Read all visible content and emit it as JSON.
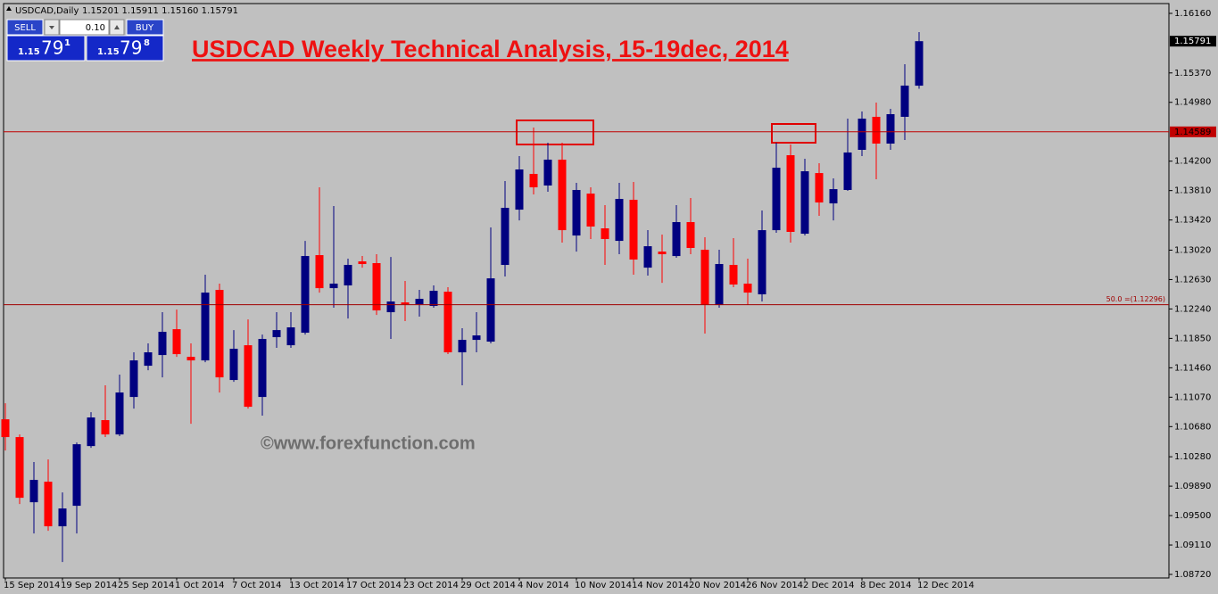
{
  "chart_data": {
    "type": "candlestick",
    "symbol_label": "USDCAD,Daily",
    "ohlc_text": "1.15201 1.15911 1.15160 1.15791",
    "title": "USDCAD Weekly Technical Analysis, 15-19dec, 2014",
    "watermark": "©www.forexfunction.com",
    "price_label": "1.15791",
    "up_color": "#000080",
    "down_color": "#ff0000",
    "grid": false,
    "categories": [
      "15 Sep 2014",
      null,
      null,
      null,
      "19 Sep 2014",
      null,
      null,
      null,
      "25 Sep 2014",
      null,
      null,
      null,
      "1 Oct 2014",
      null,
      null,
      null,
      "7 Oct 2014",
      null,
      null,
      null,
      "13 Oct 2014",
      null,
      null,
      null,
      "17 Oct 2014",
      null,
      null,
      null,
      "23 Oct 2014",
      null,
      null,
      null,
      "29 Oct 2014",
      null,
      null,
      null,
      "4 Nov 2014",
      null,
      null,
      null,
      "10 Nov 2014",
      null,
      null,
      null,
      "14 Nov 2014",
      null,
      null,
      null,
      "20 Nov 2014",
      null,
      null,
      null,
      "26 Nov 2014",
      null,
      null,
      null,
      "2 Dec 2014",
      null,
      null,
      null,
      "8 Dec 2014",
      null,
      null,
      null,
      "12 Dec 2014"
    ],
    "open": [
      1.10777,
      1.10541,
      1.09677,
      1.09949,
      1.09358,
      1.0963,
      1.10422,
      1.10766,
      1.10576,
      1.11073,
      1.11487,
      1.11629,
      1.11972,
      1.11605,
      1.11558,
      1.12493,
      1.11298,
      1.11759,
      1.11073,
      1.11866,
      1.11759,
      1.11925,
      1.12954,
      1.12516,
      1.12552,
      1.12871,
      1.12848,
      1.12197,
      1.12327,
      1.12303,
      1.1228,
      1.12469,
      1.11665,
      1.1183,
      1.11807,
      1.12824,
      1.13557,
      1.14031,
      1.13877,
      1.1422,
      1.13214,
      1.1377,
      1.13309,
      1.13143,
      1.13688,
      1.12788,
      1.13001,
      1.12942,
      1.13392,
      1.13025,
      1.12292,
      1.12824,
      1.12576,
      1.12434,
      1.13285,
      1.14279,
      1.13238,
      1.14042,
      1.1364,
      1.13818,
      1.1435,
      1.14788,
      1.14433,
      1.14788,
      1.15201
    ],
    "high": [
      1.1099,
      1.10576,
      1.1021,
      1.10245,
      1.09807,
      1.1047,
      1.10872,
      1.11227,
      1.11369,
      1.11665,
      1.11783,
      1.12197,
      1.12232,
      1.11783,
      1.12694,
      1.12576,
      1.1196,
      1.12102,
      1.11901,
      1.12197,
      1.12197,
      1.13143,
      1.13853,
      1.13605,
      1.12907,
      1.12942,
      1.12966,
      1.1293,
      1.12611,
      1.12493,
      1.12552,
      1.12528,
      1.11984,
      1.12197,
      1.13321,
      1.13936,
      1.14267,
      1.14646,
      1.14445,
      1.14445,
      1.13912,
      1.13853,
      1.13617,
      1.13912,
      1.13924,
      1.13285,
      1.13226,
      1.13617,
      1.13711,
      1.13191,
      1.13025,
      1.13179,
      1.12907,
      1.13546,
      1.14445,
      1.14421,
      1.14232,
      1.14173,
      1.13971,
      1.14764,
      1.14859,
      1.14977,
      1.14894,
      1.15486,
      1.15911
    ],
    "low": [
      1.10363,
      1.09653,
      1.09263,
      1.09299,
      1.08885,
      1.09263,
      1.10399,
      1.10541,
      1.10553,
      1.10919,
      1.11428,
      1.11333,
      1.11605,
      1.10718,
      1.11534,
      1.11132,
      1.11274,
      1.10919,
      1.10825,
      1.11724,
      1.11724,
      1.11901,
      1.12457,
      1.12256,
      1.12114,
      1.12788,
      1.12161,
      1.11842,
      1.12079,
      1.12138,
      1.12256,
      1.11641,
      1.11227,
      1.11665,
      1.11783,
      1.1267,
      1.13415,
      1.13759,
      1.13794,
      1.1312,
      1.13001,
      1.13167,
      1.12824,
      1.12966,
      1.12694,
      1.12682,
      1.12587,
      1.12919,
      1.12966,
      1.11913,
      1.12256,
      1.12528,
      1.12292,
      1.12339,
      1.1325,
      1.1312,
      1.13214,
      1.13475,
      1.13415,
      1.13806,
      1.14267,
      1.1396,
      1.1435,
      1.1448,
      1.1516
    ],
    "close": [
      1.10541,
      1.09736,
      1.09973,
      1.09358,
      1.09594,
      1.10446,
      1.10801,
      1.10576,
      1.11132,
      1.11558,
      1.11665,
      1.11937,
      1.11641,
      1.11558,
      1.12457,
      1.11333,
      1.11712,
      1.10943,
      1.11842,
      1.1196,
      1.11996,
      1.12942,
      1.12516,
      1.12576,
      1.12824,
      1.12836,
      1.12221,
      1.12339,
      1.12303,
      1.12374,
      1.12481,
      1.11665,
      1.1183,
      1.11889,
      1.12646,
      1.13581,
      1.1409,
      1.13853,
      1.1422,
      1.13285,
      1.13818,
      1.13333,
      1.13167,
      1.13699,
      1.12895,
      1.13072,
      1.12966,
      1.13392,
      1.13049,
      1.12292,
      1.12836,
      1.12564,
      1.12457,
      1.13285,
      1.14113,
      1.13262,
      1.14066,
      1.13652,
      1.13829,
      1.14315,
      1.14764,
      1.14433,
      1.14823,
      1.15202,
      1.15791
    ],
    "ylim": [
      1.08673,
      1.16278
    ],
    "yticks": [
      {
        "value": 1.1616,
        "label": "1.16160"
      },
      {
        "value": 1.1537,
        "label": "1.15370"
      },
      {
        "value": 1.1498,
        "label": "1.14980"
      },
      {
        "value": 1.142,
        "label": "1.14200"
      },
      {
        "value": 1.1381,
        "label": "1.13810"
      },
      {
        "value": 1.1342,
        "label": "1.13420"
      },
      {
        "value": 1.1302,
        "label": "1.13020"
      },
      {
        "value": 1.1263,
        "label": "1.12630"
      },
      {
        "value": 1.1224,
        "label": "1.12240"
      },
      {
        "value": 1.1185,
        "label": "1.11850"
      },
      {
        "value": 1.1146,
        "label": "1.11460"
      },
      {
        "value": 1.1107,
        "label": "1.11070"
      },
      {
        "value": 1.1068,
        "label": "1.10680"
      },
      {
        "value": 1.1028,
        "label": "1.10280"
      },
      {
        "value": 1.0989,
        "label": "1.09890"
      },
      {
        "value": 1.095,
        "label": "1.09500"
      },
      {
        "value": 1.0911,
        "label": "1.09110"
      },
      {
        "value": 1.0872,
        "label": "1.08720"
      }
    ],
    "hlines": [
      {
        "value": 1.14589,
        "label": "1.14589",
        "color": "#c00000"
      },
      {
        "value": 1.12296,
        "label": "50.0 =(1.12296)",
        "color": "#a00000"
      }
    ]
  },
  "trade_panel": {
    "sell": "SELL",
    "lot": "0.10",
    "buy": "BUY",
    "bid": {
      "big": "1.15",
      "pips": "79",
      "point": "1"
    },
    "ask": {
      "big": "1.15",
      "pips": "79",
      "point": "8"
    }
  }
}
